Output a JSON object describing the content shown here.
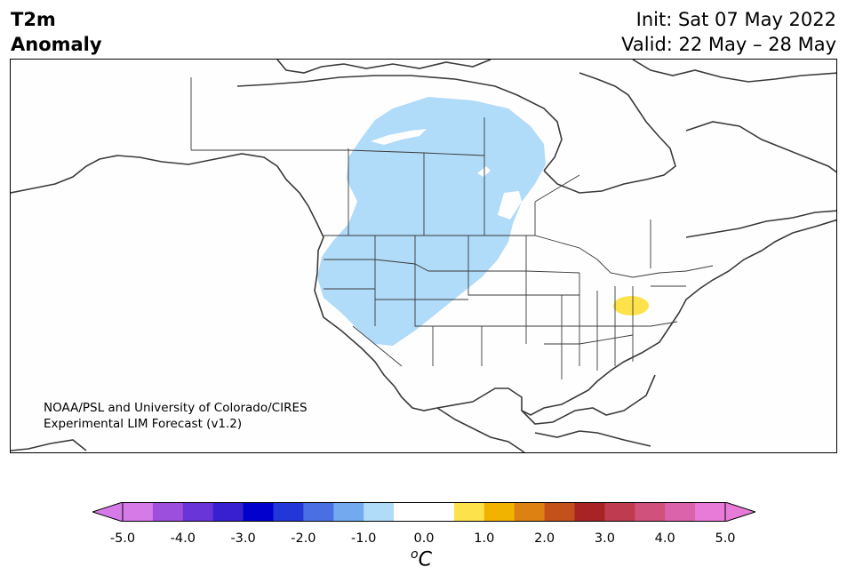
{
  "title": {
    "line1": "T2m",
    "line2": "Anomaly"
  },
  "dates": {
    "init": "Init: Sat 07 May 2022",
    "valid": "Valid: 22 May – 28 May"
  },
  "credit": {
    "line1": "NOAA/PSL and University of Colorado/CIRES",
    "line2": "Experimental LIM Forecast (v1.2)"
  },
  "colorbar": {
    "unit_sup": "o",
    "unit": "C",
    "ticks": [
      "-5.0",
      "-4.0",
      "-3.0",
      "-2.0",
      "-1.0",
      "0.0",
      "1.0",
      "2.0",
      "3.0",
      "4.0",
      "5.0"
    ],
    "colors": [
      "#d67ae8",
      "#9b4fdc",
      "#6a35d8",
      "#3820d0",
      "#0200cc",
      "#2336d8",
      "#4a6fe3",
      "#72a9ef",
      "#b0dbf9",
      "#ffffff",
      "#ffffff",
      "#fde24b",
      "#f2b300",
      "#dd8112",
      "#c4501b",
      "#a82324",
      "#bf3b4f",
      "#d0517b",
      "#db63ab",
      "#e87ad8"
    ],
    "under_color": "#d67ae8",
    "over_color": "#e87ad8"
  },
  "map": {
    "region": "North America",
    "land_color": "#fefefe",
    "line_color": "#3a3a3a",
    "anomalies": [
      {
        "area": "Western Canada / US Northwest",
        "color": "#b0dbf9",
        "value_range": "-1.0 to -0.5"
      },
      {
        "area": "Ohio / West Virginia",
        "color": "#fde24b",
        "value_range": "0.5 to 1.0"
      }
    ]
  }
}
